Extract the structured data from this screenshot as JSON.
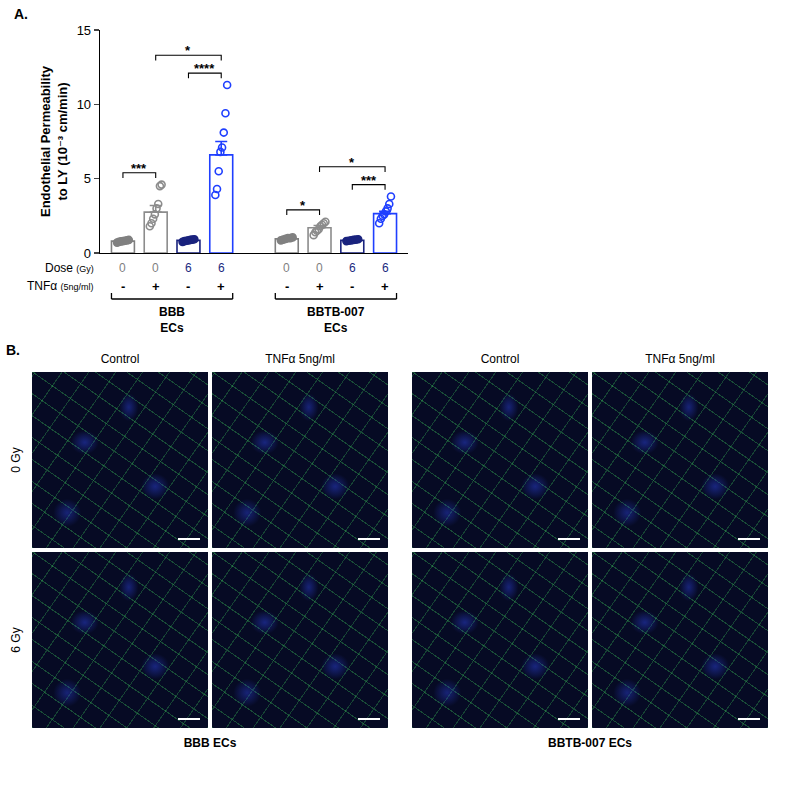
{
  "chart_data": {
    "type": "bar",
    "panel_label": "A.",
    "y_title": "Endothelial Permeability to LY (10⁻³ cm/min)",
    "ylim": [
      0,
      15
    ],
    "yticks": [
      0,
      5,
      10,
      15
    ],
    "grid": false,
    "tick_labels": "y",
    "row_labels": {
      "dose": {
        "text": "Dose",
        "unit": "(Gy)"
      },
      "tnf": {
        "text": "TNFα",
        "unit": "(5ng/ml)"
      }
    },
    "groups": [
      {
        "name": "BBB ECs",
        "bars": [
          {
            "dose": "0",
            "dose_color": "#7f7f7f",
            "tnf": "-",
            "color": "#808080",
            "marker": "filled",
            "value": 0.8,
            "error": 0.05,
            "points": [
              0.7,
              0.75,
              0.78,
              0.8,
              0.82,
              0.85,
              0.88
            ]
          },
          {
            "dose": "0",
            "dose_color": "#7f7f7f",
            "tnf": "+",
            "color": "#8c8c8c",
            "marker": "open",
            "value": 2.75,
            "error": 0.45,
            "points": [
              1.8,
              2.0,
              2.3,
              2.6,
              3.0,
              3.3,
              4.5,
              4.6
            ]
          },
          {
            "dose": "6",
            "dose_color": "#1a2a80",
            "tnf": "-",
            "color": "#1a237e",
            "marker": "filled",
            "value": 0.85,
            "error": 0.05,
            "points": [
              0.75,
              0.8,
              0.82,
              0.85,
              0.88,
              0.9,
              0.92
            ]
          },
          {
            "dose": "6",
            "dose_color": "#1a2a80",
            "tnf": "+",
            "color": "#1f3fff",
            "marker": "open",
            "value": 6.6,
            "error": 0.9,
            "points": [
              3.9,
              4.3,
              5.5,
              6.8,
              7.1,
              8.1,
              9.4,
              11.3
            ]
          }
        ],
        "comparisons": [
          {
            "from": 0,
            "to": 1,
            "label": "***"
          },
          {
            "from": 2,
            "to": 3,
            "label": "****"
          },
          {
            "from": 1,
            "to": 3,
            "label": "*"
          }
        ]
      },
      {
        "name": "BBTB-007 ECs",
        "bars": [
          {
            "dose": "0",
            "dose_color": "#7f7f7f",
            "tnf": "-",
            "color": "#808080",
            "marker": "filled",
            "value": 0.95,
            "error": 0.05,
            "points": [
              0.85,
              0.9,
              0.95,
              1.0,
              1.0,
              1.05
            ]
          },
          {
            "dose": "0",
            "dose_color": "#7f7f7f",
            "tnf": "+",
            "color": "#8c8c8c",
            "marker": "open",
            "value": 1.7,
            "error": 0.15,
            "points": [
              1.2,
              1.4,
              1.5,
              1.6,
              1.8,
              1.9,
              2.0,
              2.1
            ]
          },
          {
            "dose": "6",
            "dose_color": "#1a2a80",
            "tnf": "-",
            "color": "#1a237e",
            "marker": "filled",
            "value": 0.85,
            "error": 0.05,
            "points": [
              0.8,
              0.82,
              0.85,
              0.88,
              0.9,
              0.92
            ]
          },
          {
            "dose": "6",
            "dose_color": "#1a2a80",
            "tnf": "+",
            "color": "#1f3fff",
            "marker": "open",
            "value": 2.65,
            "error": 0.15,
            "points": [
              2.0,
              2.3,
              2.5,
              2.6,
              2.8,
              3.0,
              3.3,
              3.8
            ]
          }
        ],
        "comparisons": [
          {
            "from": 0,
            "to": 1,
            "label": "*"
          },
          {
            "from": 2,
            "to": 3,
            "label": "***"
          },
          {
            "from": 1,
            "to": 3,
            "label": "*"
          }
        ]
      }
    ]
  },
  "panel_b": {
    "panel_label": "B.",
    "columns": [
      "Control",
      "TNFα 5ng/ml"
    ],
    "rows": [
      "0 Gy",
      "6 Gy"
    ],
    "groups": [
      "BBB ECs",
      "BBTB-007 ECs"
    ]
  }
}
